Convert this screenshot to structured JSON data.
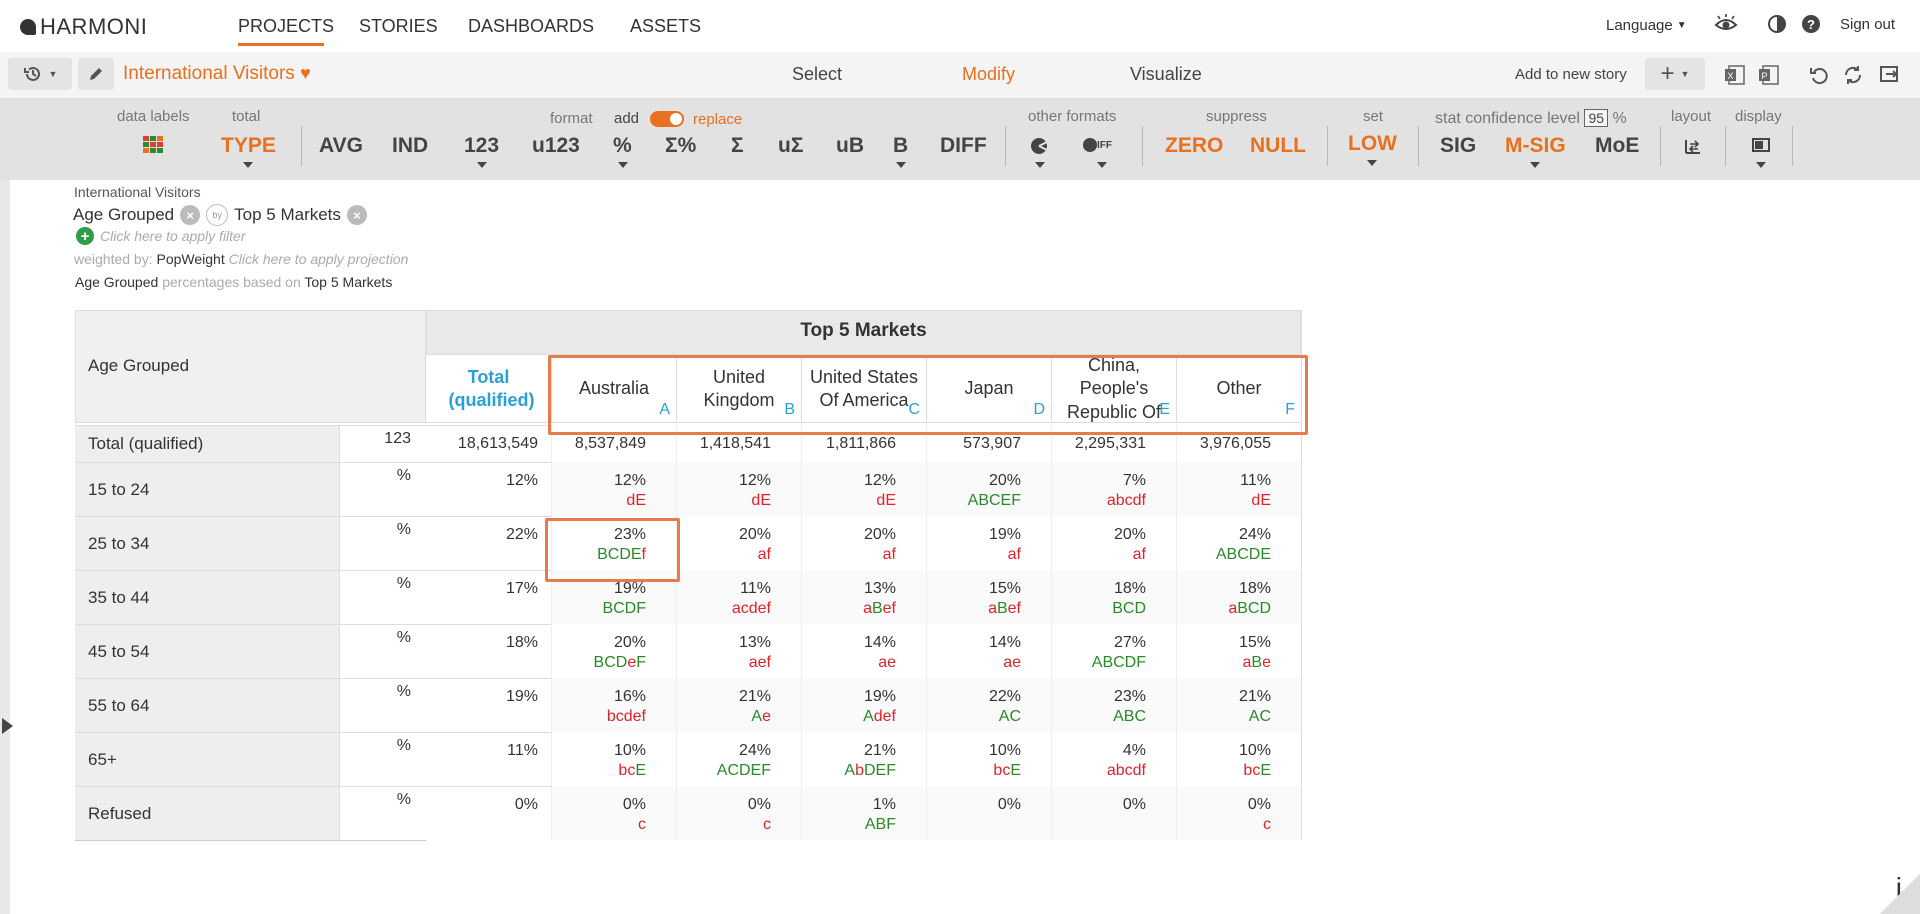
{
  "header": {
    "logo_text": "HARMONI",
    "nav": [
      "PROJECTS",
      "STORIES",
      "DASHBOARDS",
      "ASSETS"
    ],
    "language_label": "Language",
    "signout_label": "Sign out"
  },
  "subbar": {
    "project_title": "International Visitors",
    "modes": [
      "Select",
      "Modify",
      "Visualize"
    ],
    "active_mode": "Modify",
    "add_story_label": "Add to new story"
  },
  "toolbar": {
    "data_labels": "data labels",
    "total": "total",
    "type_btn": "TYPE",
    "avg": "AVG",
    "ind": "IND",
    "n123": "123",
    "u123": "u123",
    "pct": "%",
    "sum_pct": "Σ%",
    "sum": "Σ",
    "u_sum": "uΣ",
    "ub": "uB",
    "b": "B",
    "diff": "DIFF",
    "format_label": "format",
    "add_label": "add",
    "replace_label": "replace",
    "other_formats_label": "other formats",
    "suppress_label": "suppress",
    "zero": "ZERO",
    "null": "NULL",
    "set_label": "set",
    "low": "LOW",
    "stat_label": "stat confidence level",
    "confidence": "95",
    "pct_sign": "%",
    "sig": "SIG",
    "msig": "M-SIG",
    "moe": "MoE",
    "layout_label": "layout",
    "display_label": "display",
    "iff": "IFF"
  },
  "crumbs": {
    "table_name": "International Visitors",
    "row_var": "Age Grouped",
    "by_label": "by",
    "col_var": "Top 5 Markets",
    "filter_hint": "Click here to apply filter",
    "weighted_prefix": "weighted by:",
    "weight_var": "PopWeight",
    "projection_hint": "Click here to apply projection",
    "pct_row_var": "Age Grouped",
    "pct_middle": "percentages based on",
    "pct_col_var": "Top 5 Markets"
  },
  "table": {
    "banner": "Top 5 Markets",
    "row_header": "Age Grouped",
    "total_col": "Total (qualified)",
    "columns": [
      {
        "name": "Australia",
        "letter": "A"
      },
      {
        "name": "United Kingdom",
        "letter": "B"
      },
      {
        "name": "United States Of America",
        "letter": "C"
      },
      {
        "name": "Japan",
        "letter": "D"
      },
      {
        "name": "China, People's Republic Of",
        "letter": "E"
      },
      {
        "name": "Other",
        "letter": "F"
      }
    ],
    "rows": [
      {
        "label": "Total (qualified)",
        "stat": "123",
        "total": "18,613,549",
        "values": [
          "8,537,849",
          "1,418,541",
          "1,811,866",
          "573,907",
          "2,295,331",
          "3,976,055"
        ],
        "sig": []
      },
      {
        "label": "15 to 24",
        "stat": "%",
        "total": "12%",
        "values": [
          "12%",
          "12%",
          "12%",
          "20%",
          "7%",
          "11%"
        ],
        "sig": [
          [
            [
              "d",
              "r"
            ],
            [
              "E",
              "r"
            ]
          ],
          [
            [
              "d",
              "r"
            ],
            [
              "E",
              "r"
            ]
          ],
          [
            [
              "d",
              "r"
            ],
            [
              "E",
              "r"
            ]
          ],
          [
            [
              "ABCEF",
              "g"
            ]
          ],
          [
            [
              "abcdf",
              "r"
            ]
          ],
          [
            [
              "d",
              "r"
            ],
            [
              "E",
              "r"
            ]
          ]
        ]
      },
      {
        "label": "25 to 34",
        "stat": "%",
        "total": "22%",
        "values": [
          "23%",
          "20%",
          "20%",
          "19%",
          "20%",
          "24%"
        ],
        "sig": [
          [
            [
              "BCDE",
              "g"
            ],
            [
              "f",
              "r"
            ]
          ],
          [
            [
              "af",
              "r"
            ]
          ],
          [
            [
              "af",
              "r"
            ]
          ],
          [
            [
              "af",
              "r"
            ]
          ],
          [
            [
              "af",
              "r"
            ]
          ],
          [
            [
              "ABCDE",
              "g"
            ]
          ]
        ]
      },
      {
        "label": "35 to 44",
        "stat": "%",
        "total": "17%",
        "values": [
          "19%",
          "11%",
          "13%",
          "15%",
          "18%",
          "18%"
        ],
        "sig": [
          [
            [
              "BCDF",
              "g"
            ]
          ],
          [
            [
              "acdef",
              "r"
            ]
          ],
          [
            [
              "a",
              "r"
            ],
            [
              "B",
              "g"
            ],
            [
              "ef",
              "r"
            ]
          ],
          [
            [
              "a",
              "r"
            ],
            [
              "B",
              "g"
            ],
            [
              "ef",
              "r"
            ]
          ],
          [
            [
              "BCD",
              "g"
            ]
          ],
          [
            [
              "a",
              "r"
            ],
            [
              "BCD",
              "g"
            ]
          ]
        ]
      },
      {
        "label": "45 to 54",
        "stat": "%",
        "total": "18%",
        "values": [
          "20%",
          "13%",
          "14%",
          "14%",
          "27%",
          "15%"
        ],
        "sig": [
          [
            [
              "BCD",
              "g"
            ],
            [
              "e",
              "r"
            ],
            [
              "F",
              "g"
            ]
          ],
          [
            [
              "aef",
              "r"
            ]
          ],
          [
            [
              "ae",
              "r"
            ]
          ],
          [
            [
              "ae",
              "r"
            ]
          ],
          [
            [
              "ABCDF",
              "g"
            ]
          ],
          [
            [
              "a",
              "r"
            ],
            [
              "B",
              "g"
            ],
            [
              "e",
              "r"
            ]
          ]
        ]
      },
      {
        "label": "55 to 64",
        "stat": "%",
        "total": "19%",
        "values": [
          "16%",
          "21%",
          "19%",
          "22%",
          "23%",
          "21%"
        ],
        "sig": [
          [
            [
              "bcdef",
              "r"
            ]
          ],
          [
            [
              "A",
              "g"
            ],
            [
              "e",
              "r"
            ]
          ],
          [
            [
              "A",
              "g"
            ],
            [
              "def",
              "r"
            ]
          ],
          [
            [
              "AC",
              "g"
            ]
          ],
          [
            [
              "ABC",
              "g"
            ]
          ],
          [
            [
              "AC",
              "g"
            ]
          ]
        ]
      },
      {
        "label": "65+",
        "stat": "%",
        "total": "11%",
        "values": [
          "10%",
          "24%",
          "21%",
          "10%",
          "4%",
          "10%"
        ],
        "sig": [
          [
            [
              "bc",
              "r"
            ],
            [
              "E",
              "g"
            ]
          ],
          [
            [
              "ACDEF",
              "g"
            ]
          ],
          [
            [
              "A",
              "g"
            ],
            [
              "b",
              "r"
            ],
            [
              "DEF",
              "g"
            ]
          ],
          [
            [
              "bc",
              "r"
            ],
            [
              "E",
              "g"
            ]
          ],
          [
            [
              "abcdf",
              "r"
            ]
          ],
          [
            [
              "bc",
              "r"
            ],
            [
              "E",
              "g"
            ]
          ]
        ]
      },
      {
        "label": "Refused",
        "stat": "%",
        "total": "0%",
        "values": [
          "0%",
          "0%",
          "1%",
          "0%",
          "0%",
          "0%"
        ],
        "sig": [
          [
            [
              "c",
              "r"
            ]
          ],
          [
            [
              "c",
              "r"
            ]
          ],
          [
            [
              "ABF",
              "g"
            ]
          ],
          [],
          [],
          [
            [
              "c",
              "r"
            ]
          ]
        ]
      }
    ]
  },
  "info_icon": "i"
}
